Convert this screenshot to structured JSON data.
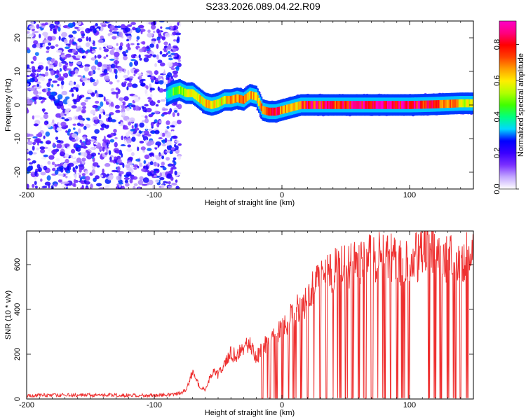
{
  "figure": {
    "title": "S233.2026.089.04.22.R09"
  },
  "chart_data": [
    {
      "type": "heatmap",
      "xlabel": "Height of straight line (km)",
      "ylabel": "Frequency (Hz)",
      "xlim": [
        -200,
        150
      ],
      "ylim": [
        -25,
        25
      ],
      "xticks": [
        -200,
        -100,
        0,
        100
      ],
      "yticks": [
        -20,
        -10,
        0,
        10,
        20
      ],
      "noise_region": {
        "x_from": -200,
        "x_to": -80,
        "amplitude_range": [
          0.0,
          0.3
        ]
      },
      "ridge": {
        "description_points_x": [
          -90,
          -85,
          -80,
          -75,
          -70,
          -65,
          -60,
          -55,
          -50,
          -45,
          -40,
          -35,
          -30,
          -25,
          -20,
          -15,
          -10,
          -5,
          0,
          5,
          10,
          15,
          20,
          30,
          40,
          60,
          80,
          100,
          120,
          140,
          150
        ],
        "frequency_hz": [
          3,
          4,
          4.5,
          3.5,
          3.5,
          2,
          0.5,
          0,
          0.5,
          1.5,
          1.5,
          2,
          1.5,
          3,
          2.5,
          -1.5,
          -2,
          -2,
          -1.5,
          -1,
          -0.5,
          0,
          0,
          0,
          0,
          0,
          0,
          0,
          0.2,
          0.5,
          0.5
        ],
        "peak_amplitude": [
          0.3,
          0.45,
          0.5,
          0.55,
          0.6,
          0.6,
          0.6,
          0.6,
          0.6,
          0.6,
          0.65,
          0.65,
          0.65,
          0.65,
          0.6,
          0.7,
          0.8,
          0.85,
          0.7,
          0.6,
          0.6,
          0.75,
          0.8,
          0.8,
          0.8,
          0.85,
          0.9,
          0.85,
          0.75,
          0.6,
          0.55
        ]
      },
      "colorbar": {
        "label": "Normalized spectral amplitude",
        "range": [
          0.0,
          0.93
        ],
        "ticks": [
          "0.0",
          "0.2",
          "0.4",
          "0.6",
          "0.8"
        ],
        "colors": [
          "#ffffff",
          "#c4a8ff",
          "#7a30ff",
          "#3a00ff",
          "#0000ff",
          "#00d8ff",
          "#00ff80",
          "#40ff00",
          "#b0ff00",
          "#ffee00",
          "#ffa000",
          "#ff4000",
          "#ff0000",
          "#ff0080",
          "#ff00c8"
        ]
      }
    },
    {
      "type": "line",
      "xlabel": "Height of straight line (km)",
      "ylabel": "SNR (10 * v/v)",
      "xlim": [
        -200,
        150
      ],
      "ylim": [
        0,
        750
      ],
      "xticks": [
        -200,
        -100,
        0,
        100
      ],
      "yticks": [
        0,
        200,
        400,
        600
      ],
      "series": [
        {
          "color": "#ee3030",
          "x": [
            -200,
            -180,
            -160,
            -140,
            -120,
            -100,
            -90,
            -80,
            -75,
            -70,
            -65,
            -60,
            -55,
            -50,
            -45,
            -40,
            -35,
            -30,
            -25,
            -20,
            -15,
            -10,
            -5,
            0,
            5,
            10,
            15,
            20,
            25,
            30,
            35,
            40,
            50,
            60,
            70,
            80,
            90,
            100,
            110,
            115,
            120,
            130,
            140,
            150
          ],
          "y": [
            15,
            18,
            17,
            18,
            17,
            15,
            18,
            25,
            40,
            120,
            60,
            40,
            120,
            110,
            170,
            200,
            190,
            230,
            240,
            180,
            240,
            260,
            270,
            320,
            350,
            390,
            420,
            430,
            500,
            540,
            550,
            570,
            590,
            610,
            630,
            640,
            620,
            610,
            650,
            700,
            660,
            620,
            630,
            640
          ],
          "dropouts_x": [
            -15,
            -10,
            -5,
            0,
            5,
            10,
            15,
            20,
            25,
            30,
            35,
            40,
            45,
            50,
            55,
            60,
            65,
            70,
            75,
            80,
            85,
            90,
            95,
            100,
            115,
            120,
            125,
            130,
            135,
            140,
            145
          ]
        }
      ]
    }
  ]
}
